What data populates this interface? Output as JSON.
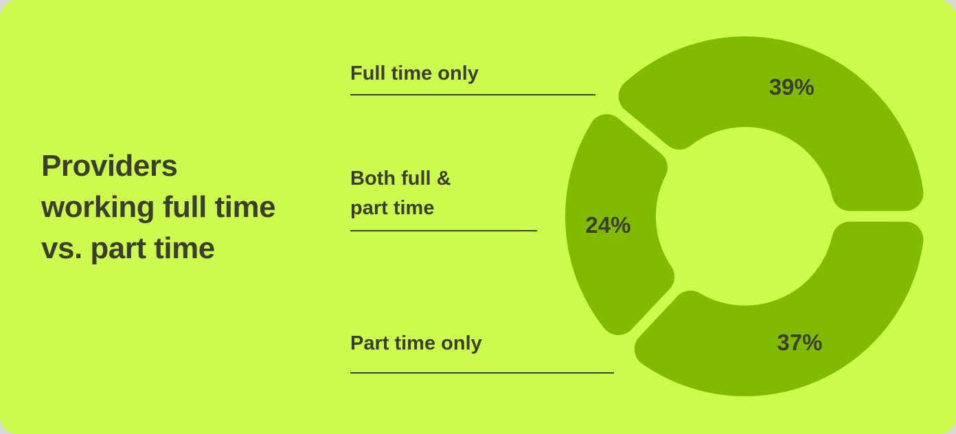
{
  "colors": {
    "page_background": "#d9d9d9",
    "card_background": "#ccfa4e",
    "segment": "#80bb01",
    "text": "#3b3f29"
  },
  "title": {
    "lines": [
      "Providers",
      "working full time",
      "vs. part time"
    ],
    "full_text": "Providers working full time vs. part time"
  },
  "legend": {
    "items": [
      {
        "id": "full-time-only",
        "lines": [
          "Full time only"
        ]
      },
      {
        "id": "both-full-and-part-time",
        "lines": [
          "Both full &",
          "part time"
        ]
      },
      {
        "id": "part-time-only",
        "lines": [
          "Part time only"
        ]
      }
    ]
  },
  "chart_data": {
    "type": "pie",
    "variant": "donut",
    "title": "Providers working full time vs. part time",
    "categories": [
      "Full time only",
      "Both full & part time",
      "Part time only"
    ],
    "values": [
      39,
      24,
      37
    ],
    "unit": "%",
    "display_values": [
      "39%",
      "24%",
      "37%"
    ],
    "start_angle_deg": 0,
    "direction": "counterclockwise",
    "segments_single_color": true,
    "legend_position": "left",
    "value_labels": "inside-ring"
  }
}
